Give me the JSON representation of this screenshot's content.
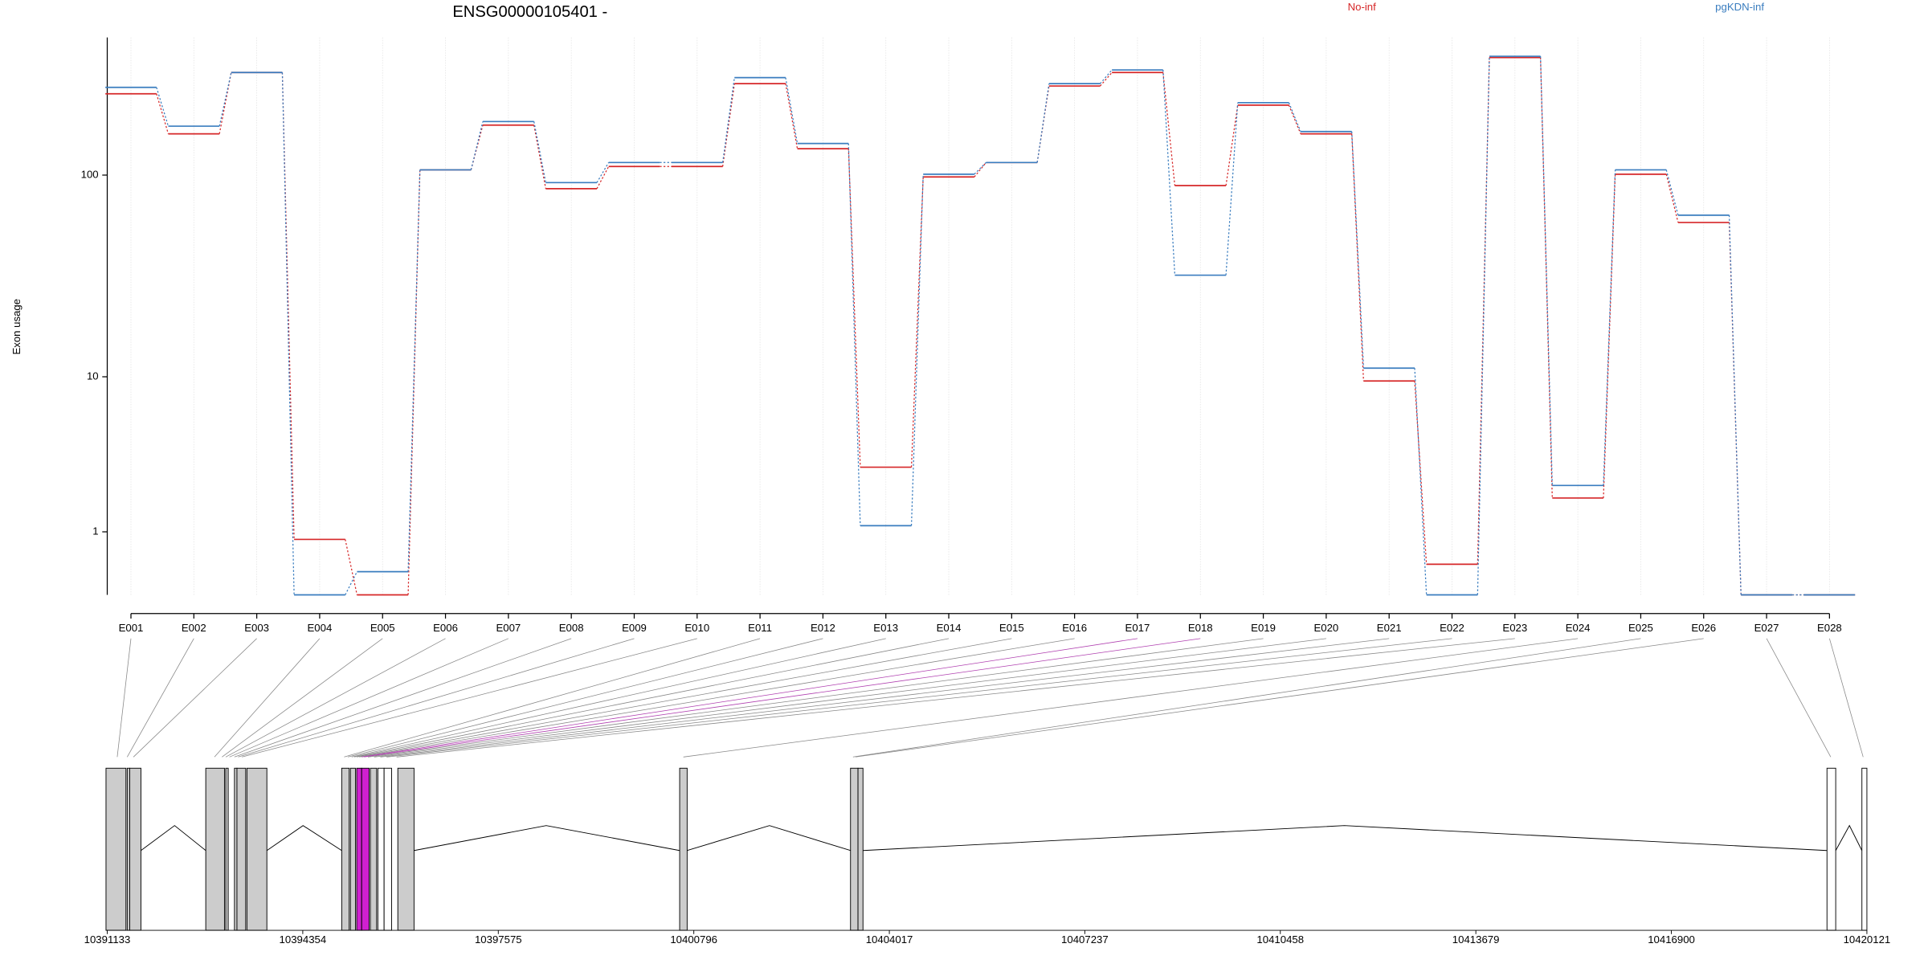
{
  "chart_data": {
    "type": "line",
    "title": "ENSG00000105401 -",
    "y_label": "Exon usage",
    "y_scale": "log1p",
    "grid": true,
    "categories": [
      "E001",
      "E002",
      "E003",
      "E004",
      "E005",
      "E006",
      "E007",
      "E008",
      "E009",
      "E010",
      "E011",
      "E012",
      "E013",
      "E014",
      "E015",
      "E016",
      "E017",
      "E018",
      "E019",
      "E020",
      "E021",
      "E022",
      "E023",
      "E024",
      "E025",
      "E026",
      "E027",
      "E028"
    ],
    "series": [
      {
        "name": "No-inf",
        "color": "#d62728",
        "values": [
          246,
          158,
          311,
          0.84,
          0,
          106,
          174,
          86,
          110,
          110,
          275,
          134,
          3.07,
          98,
          115,
          268,
          311,
          89,
          217,
          158,
          9.5,
          0.4,
          367,
          1.9,
          101,
          59,
          0,
          0
        ]
      },
      {
        "name": "pgKDN-inf",
        "color": "#3a7dbf",
        "values": [
          264,
          172,
          311,
          0,
          0.29,
          106,
          181,
          92,
          115,
          115,
          294,
          142,
          1.14,
          101,
          115,
          275,
          320,
          32.6,
          223,
          162,
          11.1,
          0,
          372,
          2.33,
          106,
          64,
          0,
          0
        ]
      }
    ],
    "ylim": [
      0,
      458
    ],
    "yticks": [
      1,
      10,
      100
    ],
    "genome_axis": {
      "xlim": [
        10391133,
        10420121
      ],
      "xticks": [
        10391133,
        10394354,
        10397575,
        10400796,
        10404017,
        10407237,
        10410458,
        10413679,
        10416900,
        10420121
      ]
    }
  }
}
